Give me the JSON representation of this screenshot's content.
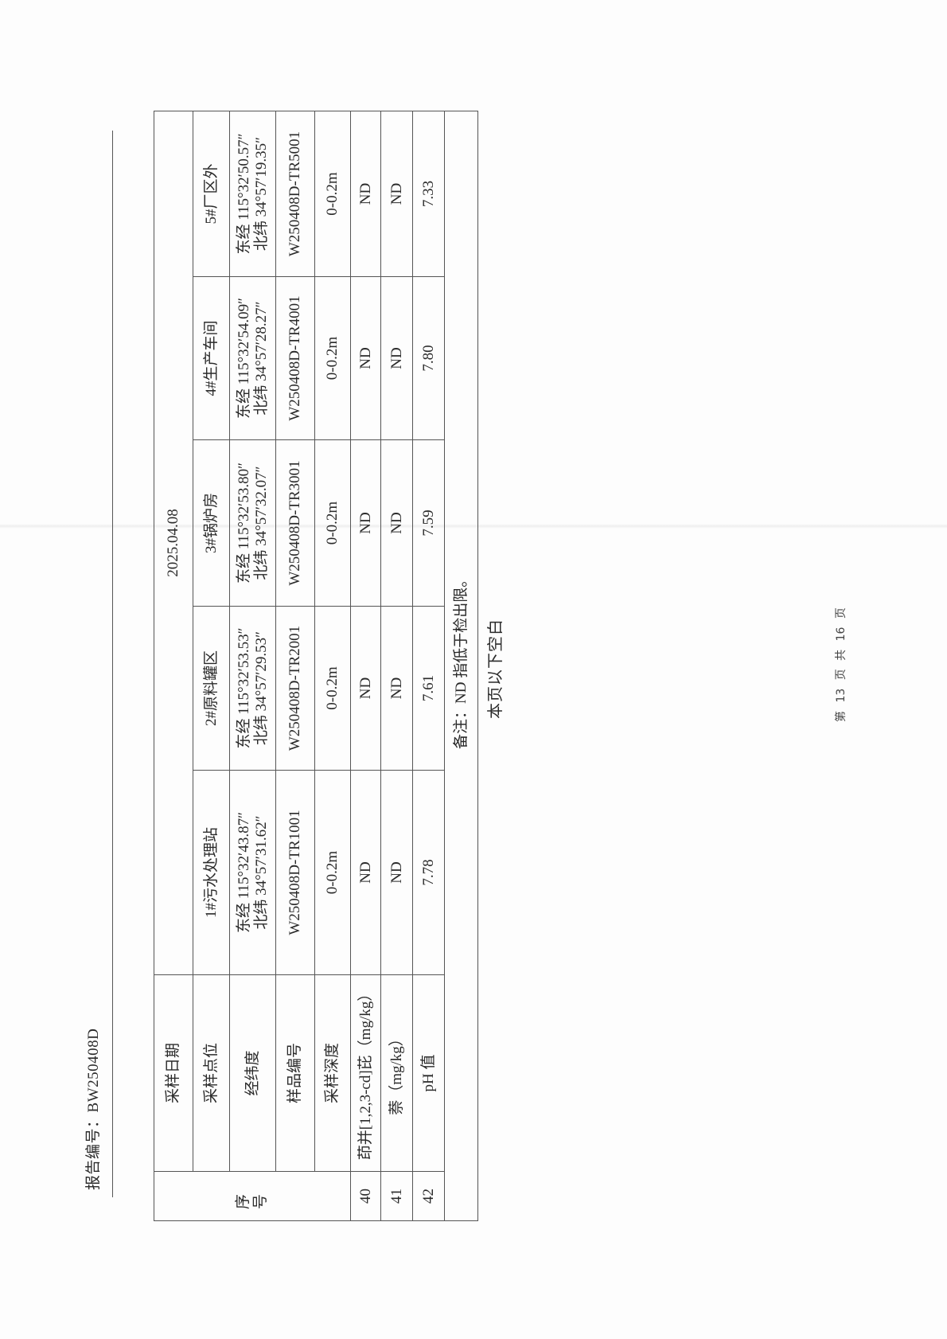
{
  "header": {
    "report_number_label": "报告编号：",
    "report_number": "BW250408D"
  },
  "table": {
    "seq_header": "序号",
    "row_labels": {
      "date": "采样日期",
      "site": "采样点位",
      "coords": "经纬度",
      "sample_id": "样品编号",
      "depth": "采样深度"
    },
    "date": "2025.04.08",
    "sites": [
      {
        "name": "1#污水处理站",
        "lon": "东经 115°32′43.87″",
        "lat": "北纬 34°57′31.62″",
        "sample_id": "W250408D-TR1001",
        "depth": "0-0.2m"
      },
      {
        "name": "2#原料罐区",
        "lon": "东经 115°32′53.53″",
        "lat": "北纬 34°57′29.53″",
        "sample_id": "W250408D-TR2001",
        "depth": "0-0.2m"
      },
      {
        "name": "3#锅炉房",
        "lon": "东经 115°32′53.80″",
        "lat": "北纬 34°57′32.07″",
        "sample_id": "W250408D-TR3001",
        "depth": "0-0.2m"
      },
      {
        "name": "4#生产车间",
        "lon": "东经 115°32′54.09″",
        "lat": "北纬 34°57′28.27″",
        "sample_id": "W250408D-TR4001",
        "depth": "0-0.2m"
      },
      {
        "name": "5#厂区外",
        "lon": "东经 115°32′50.57″",
        "lat": "北纬 34°57′19.35″",
        "sample_id": "W250408D-TR5001",
        "depth": "0-0.2m"
      }
    ],
    "rows": [
      {
        "no": "40",
        "param": "茚并[1,2,3-cd]芘（mg/kg）",
        "values": [
          "ND",
          "ND",
          "ND",
          "ND",
          "ND"
        ]
      },
      {
        "no": "41",
        "param": "萘（mg/kg）",
        "values": [
          "ND",
          "ND",
          "ND",
          "ND",
          "ND"
        ]
      },
      {
        "no": "42",
        "param": "pH 值",
        "values": [
          "7.78",
          "7.61",
          "7.59",
          "7.80",
          "7.33"
        ]
      }
    ],
    "notes": "备注：ND 指低于检出限。"
  },
  "blank_note": "本页以下空白",
  "footer": {
    "page_number": "第 13 页 共 16 页"
  }
}
